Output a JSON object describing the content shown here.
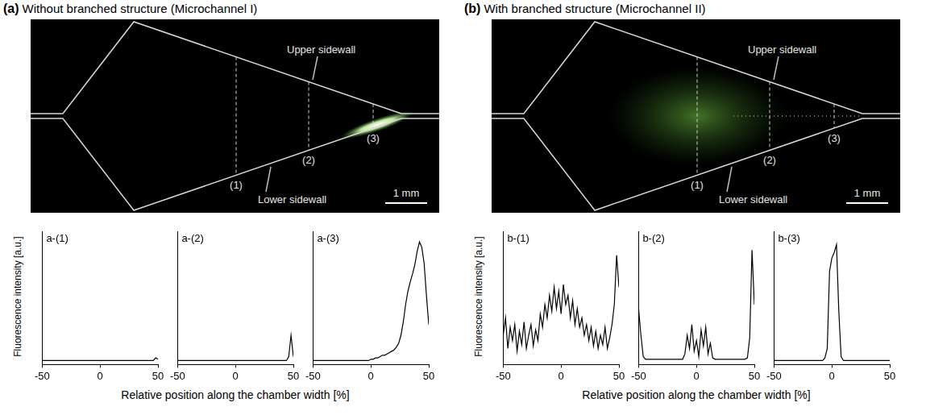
{
  "panels": [
    {
      "letter": "(a)",
      "title": "Without branched structure (Microchannel I)",
      "upper_label": "Upper sidewall",
      "lower_label": "Lower sidewall",
      "sections": [
        "(1)",
        "(2)",
        "(3)"
      ],
      "scale_bar": "1 mm",
      "y_label": "Fluorescence intensity [a.u.]",
      "x_label": "Relative position along the chamber width [%]"
    },
    {
      "letter": "(b)",
      "title": "With branched structure (Microchannel II)",
      "upper_label": "Upper sidewall",
      "lower_label": "Lower sidewall",
      "sections": [
        "(1)",
        "(2)",
        "(3)"
      ],
      "scale_bar": "1 mm",
      "y_label": "Fluorescence intensity [a.u.]",
      "x_label": "Relative position along the chamber width [%]"
    }
  ],
  "chart_data": [
    {
      "type": "line",
      "title": "a-(1)",
      "color": "#000000",
      "xlim": [
        -50,
        50
      ],
      "xticks": [
        -50,
        0,
        50
      ],
      "ylim": [
        0,
        100
      ],
      "tick_labels": "x",
      "x": [
        -50,
        -48,
        -46,
        -44,
        -42,
        -40,
        -38,
        -36,
        -34,
        -32,
        -30,
        -28,
        -26,
        -24,
        -22,
        -20,
        -18,
        -16,
        -14,
        -12,
        -10,
        -8,
        -6,
        -4,
        -2,
        0,
        2,
        4,
        6,
        8,
        10,
        12,
        14,
        16,
        18,
        20,
        22,
        24,
        26,
        28,
        30,
        32,
        34,
        36,
        38,
        40,
        42,
        44,
        46,
        48,
        50
      ],
      "values": [
        3,
        3,
        3,
        3,
        3,
        3,
        3,
        3,
        3,
        3,
        3,
        3,
        3,
        3,
        3,
        3,
        3,
        3,
        3,
        3,
        3,
        3,
        3,
        3,
        3,
        3,
        3,
        3,
        3,
        3,
        3,
        3,
        3,
        3,
        3,
        3,
        3,
        3,
        3,
        3,
        3,
        3,
        3,
        3,
        3,
        3,
        3,
        3,
        3,
        5,
        4
      ]
    },
    {
      "type": "line",
      "title": "a-(2)",
      "color": "#000000",
      "xlim": [
        -50,
        50
      ],
      "xticks": [
        -50,
        0,
        50
      ],
      "ylim": [
        0,
        100
      ],
      "tick_labels": "x",
      "x": [
        -50,
        -48,
        -46,
        -44,
        -42,
        -40,
        -38,
        -36,
        -34,
        -32,
        -30,
        -28,
        -26,
        -24,
        -22,
        -20,
        -18,
        -16,
        -14,
        -12,
        -10,
        -8,
        -6,
        -4,
        -2,
        0,
        2,
        4,
        6,
        8,
        10,
        12,
        14,
        16,
        18,
        20,
        22,
        24,
        26,
        28,
        30,
        32,
        34,
        36,
        38,
        40,
        42,
        44,
        46,
        48,
        50
      ],
      "values": [
        3,
        3,
        3,
        3,
        3,
        3,
        3,
        3,
        3,
        3,
        3,
        3,
        3,
        3,
        3,
        3,
        3,
        3,
        3,
        3,
        3,
        3,
        3,
        3,
        3,
        3,
        3,
        3,
        3,
        3,
        3,
        3,
        3,
        3,
        3,
        3,
        3,
        3,
        3,
        3,
        3,
        3,
        3,
        3,
        3,
        3,
        3,
        3,
        6,
        22,
        6
      ]
    },
    {
      "type": "line",
      "title": "a-(3)",
      "color": "#000000",
      "xlim": [
        -50,
        50
      ],
      "xticks": [
        -50,
        0,
        50
      ],
      "ylim": [
        0,
        100
      ],
      "tick_labels": "x",
      "x": [
        -50,
        -48,
        -46,
        -44,
        -42,
        -40,
        -38,
        -36,
        -34,
        -32,
        -30,
        -28,
        -26,
        -24,
        -22,
        -20,
        -18,
        -16,
        -14,
        -12,
        -10,
        -8,
        -6,
        -4,
        -2,
        0,
        2,
        4,
        6,
        8,
        10,
        12,
        14,
        16,
        18,
        20,
        22,
        24,
        26,
        28,
        30,
        32,
        34,
        36,
        38,
        40,
        42,
        44,
        46,
        48,
        50
      ],
      "values": [
        3,
        3,
        3,
        3,
        3,
        3,
        3,
        3,
        3,
        3,
        3,
        3,
        3,
        3,
        3,
        3,
        3,
        3,
        3,
        3,
        3,
        3,
        3,
        3,
        3,
        4,
        4,
        5,
        5,
        6,
        7,
        7,
        8,
        9,
        10,
        11,
        13,
        16,
        22,
        32,
        45,
        55,
        62,
        68,
        75,
        85,
        92,
        88,
        76,
        52,
        30
      ]
    },
    {
      "type": "line",
      "title": "b-(1)",
      "color": "#000000",
      "xlim": [
        -50,
        50
      ],
      "xticks": [
        -50,
        0,
        50
      ],
      "ylim": [
        0,
        100
      ],
      "tick_labels": "x",
      "x": [
        -50,
        -48,
        -46,
        -44,
        -42,
        -40,
        -38,
        -36,
        -34,
        -32,
        -30,
        -28,
        -26,
        -24,
        -22,
        -20,
        -18,
        -16,
        -14,
        -12,
        -10,
        -8,
        -6,
        -4,
        -2,
        0,
        2,
        4,
        6,
        8,
        10,
        12,
        14,
        16,
        18,
        20,
        22,
        24,
        26,
        28,
        30,
        32,
        34,
        36,
        38,
        40,
        42,
        44,
        46,
        48,
        50
      ],
      "values": [
        22,
        35,
        12,
        28,
        18,
        30,
        10,
        25,
        15,
        32,
        12,
        22,
        30,
        14,
        26,
        18,
        38,
        28,
        45,
        35,
        52,
        40,
        58,
        42,
        55,
        38,
        60,
        45,
        52,
        35,
        48,
        30,
        42,
        28,
        35,
        22,
        30,
        18,
        28,
        14,
        25,
        12,
        22,
        15,
        28,
        12,
        20,
        30,
        45,
        82,
        58
      ]
    },
    {
      "type": "line",
      "title": "b-(2)",
      "color": "#000000",
      "xlim": [
        -50,
        50
      ],
      "xticks": [
        -50,
        0,
        50
      ],
      "ylim": [
        0,
        100
      ],
      "tick_labels": "x",
      "x": [
        -50,
        -48,
        -46,
        -44,
        -42,
        -40,
        -38,
        -36,
        -34,
        -32,
        -30,
        -28,
        -26,
        -24,
        -22,
        -20,
        -18,
        -16,
        -14,
        -12,
        -10,
        -8,
        -6,
        -4,
        -2,
        0,
        2,
        4,
        6,
        8,
        10,
        12,
        14,
        16,
        18,
        20,
        22,
        24,
        26,
        28,
        30,
        32,
        34,
        36,
        38,
        40,
        42,
        44,
        46,
        48,
        50
      ],
      "values": [
        42,
        22,
        6,
        4,
        4,
        4,
        4,
        4,
        4,
        4,
        4,
        4,
        4,
        4,
        4,
        4,
        4,
        4,
        4,
        4,
        8,
        22,
        12,
        30,
        10,
        18,
        6,
        26,
        14,
        28,
        8,
        16,
        5,
        4,
        4,
        4,
        4,
        4,
        4,
        4,
        4,
        4,
        4,
        4,
        4,
        4,
        4,
        5,
        20,
        86,
        45
      ]
    },
    {
      "type": "line",
      "title": "b-(3)",
      "color": "#000000",
      "xlim": [
        -50,
        50
      ],
      "xticks": [
        -50,
        0,
        50
      ],
      "ylim": [
        0,
        100
      ],
      "tick_labels": "x",
      "x": [
        -50,
        -48,
        -46,
        -44,
        -42,
        -40,
        -38,
        -36,
        -34,
        -32,
        -30,
        -28,
        -26,
        -24,
        -22,
        -20,
        -18,
        -16,
        -14,
        -12,
        -10,
        -8,
        -6,
        -4,
        -2,
        0,
        2,
        4,
        6,
        8,
        10,
        12,
        14,
        16,
        18,
        20,
        22,
        24,
        26,
        28,
        30,
        32,
        34,
        36,
        38,
        40,
        42,
        44,
        46,
        48,
        50
      ],
      "values": [
        3,
        3,
        3,
        3,
        3,
        3,
        3,
        3,
        3,
        3,
        3,
        3,
        3,
        3,
        3,
        3,
        3,
        3,
        3,
        3,
        3,
        3,
        5,
        12,
        70,
        80,
        84,
        90,
        40,
        6,
        3,
        3,
        3,
        3,
        3,
        3,
        3,
        3,
        3,
        3,
        3,
        3,
        3,
        3,
        3,
        3,
        3,
        3,
        3,
        3,
        3
      ]
    }
  ]
}
